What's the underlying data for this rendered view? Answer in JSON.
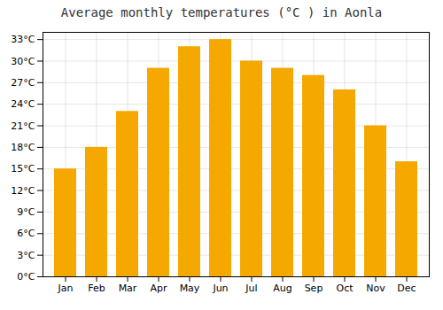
{
  "chart_data": {
    "type": "bar",
    "title": "Average monthly temperatures (°C ) in Aonla",
    "categories": [
      "Jan",
      "Feb",
      "Mar",
      "Apr",
      "May",
      "Jun",
      "Jul",
      "Aug",
      "Sep",
      "Oct",
      "Nov",
      "Dec"
    ],
    "values": [
      15,
      18,
      23,
      29,
      32,
      33,
      30,
      29,
      28,
      26,
      21,
      16
    ],
    "color": "#F5A800",
    "ylim": [
      0,
      34
    ],
    "yticks": [
      {
        "value": 0,
        "label": "0°C"
      },
      {
        "value": 3,
        "label": "3°C"
      },
      {
        "value": 6,
        "label": "6°C"
      },
      {
        "value": 9,
        "label": "9°C"
      },
      {
        "value": 12,
        "label": "12°C"
      },
      {
        "value": 15,
        "label": "15°C"
      },
      {
        "value": 18,
        "label": "18°C"
      },
      {
        "value": 21,
        "label": "21°C"
      },
      {
        "value": 24,
        "label": "24°C"
      },
      {
        "value": 27,
        "label": "27°C"
      },
      {
        "value": 30,
        "label": "30°C"
      },
      {
        "value": 33,
        "label": "33°C"
      }
    ],
    "grid": true
  }
}
